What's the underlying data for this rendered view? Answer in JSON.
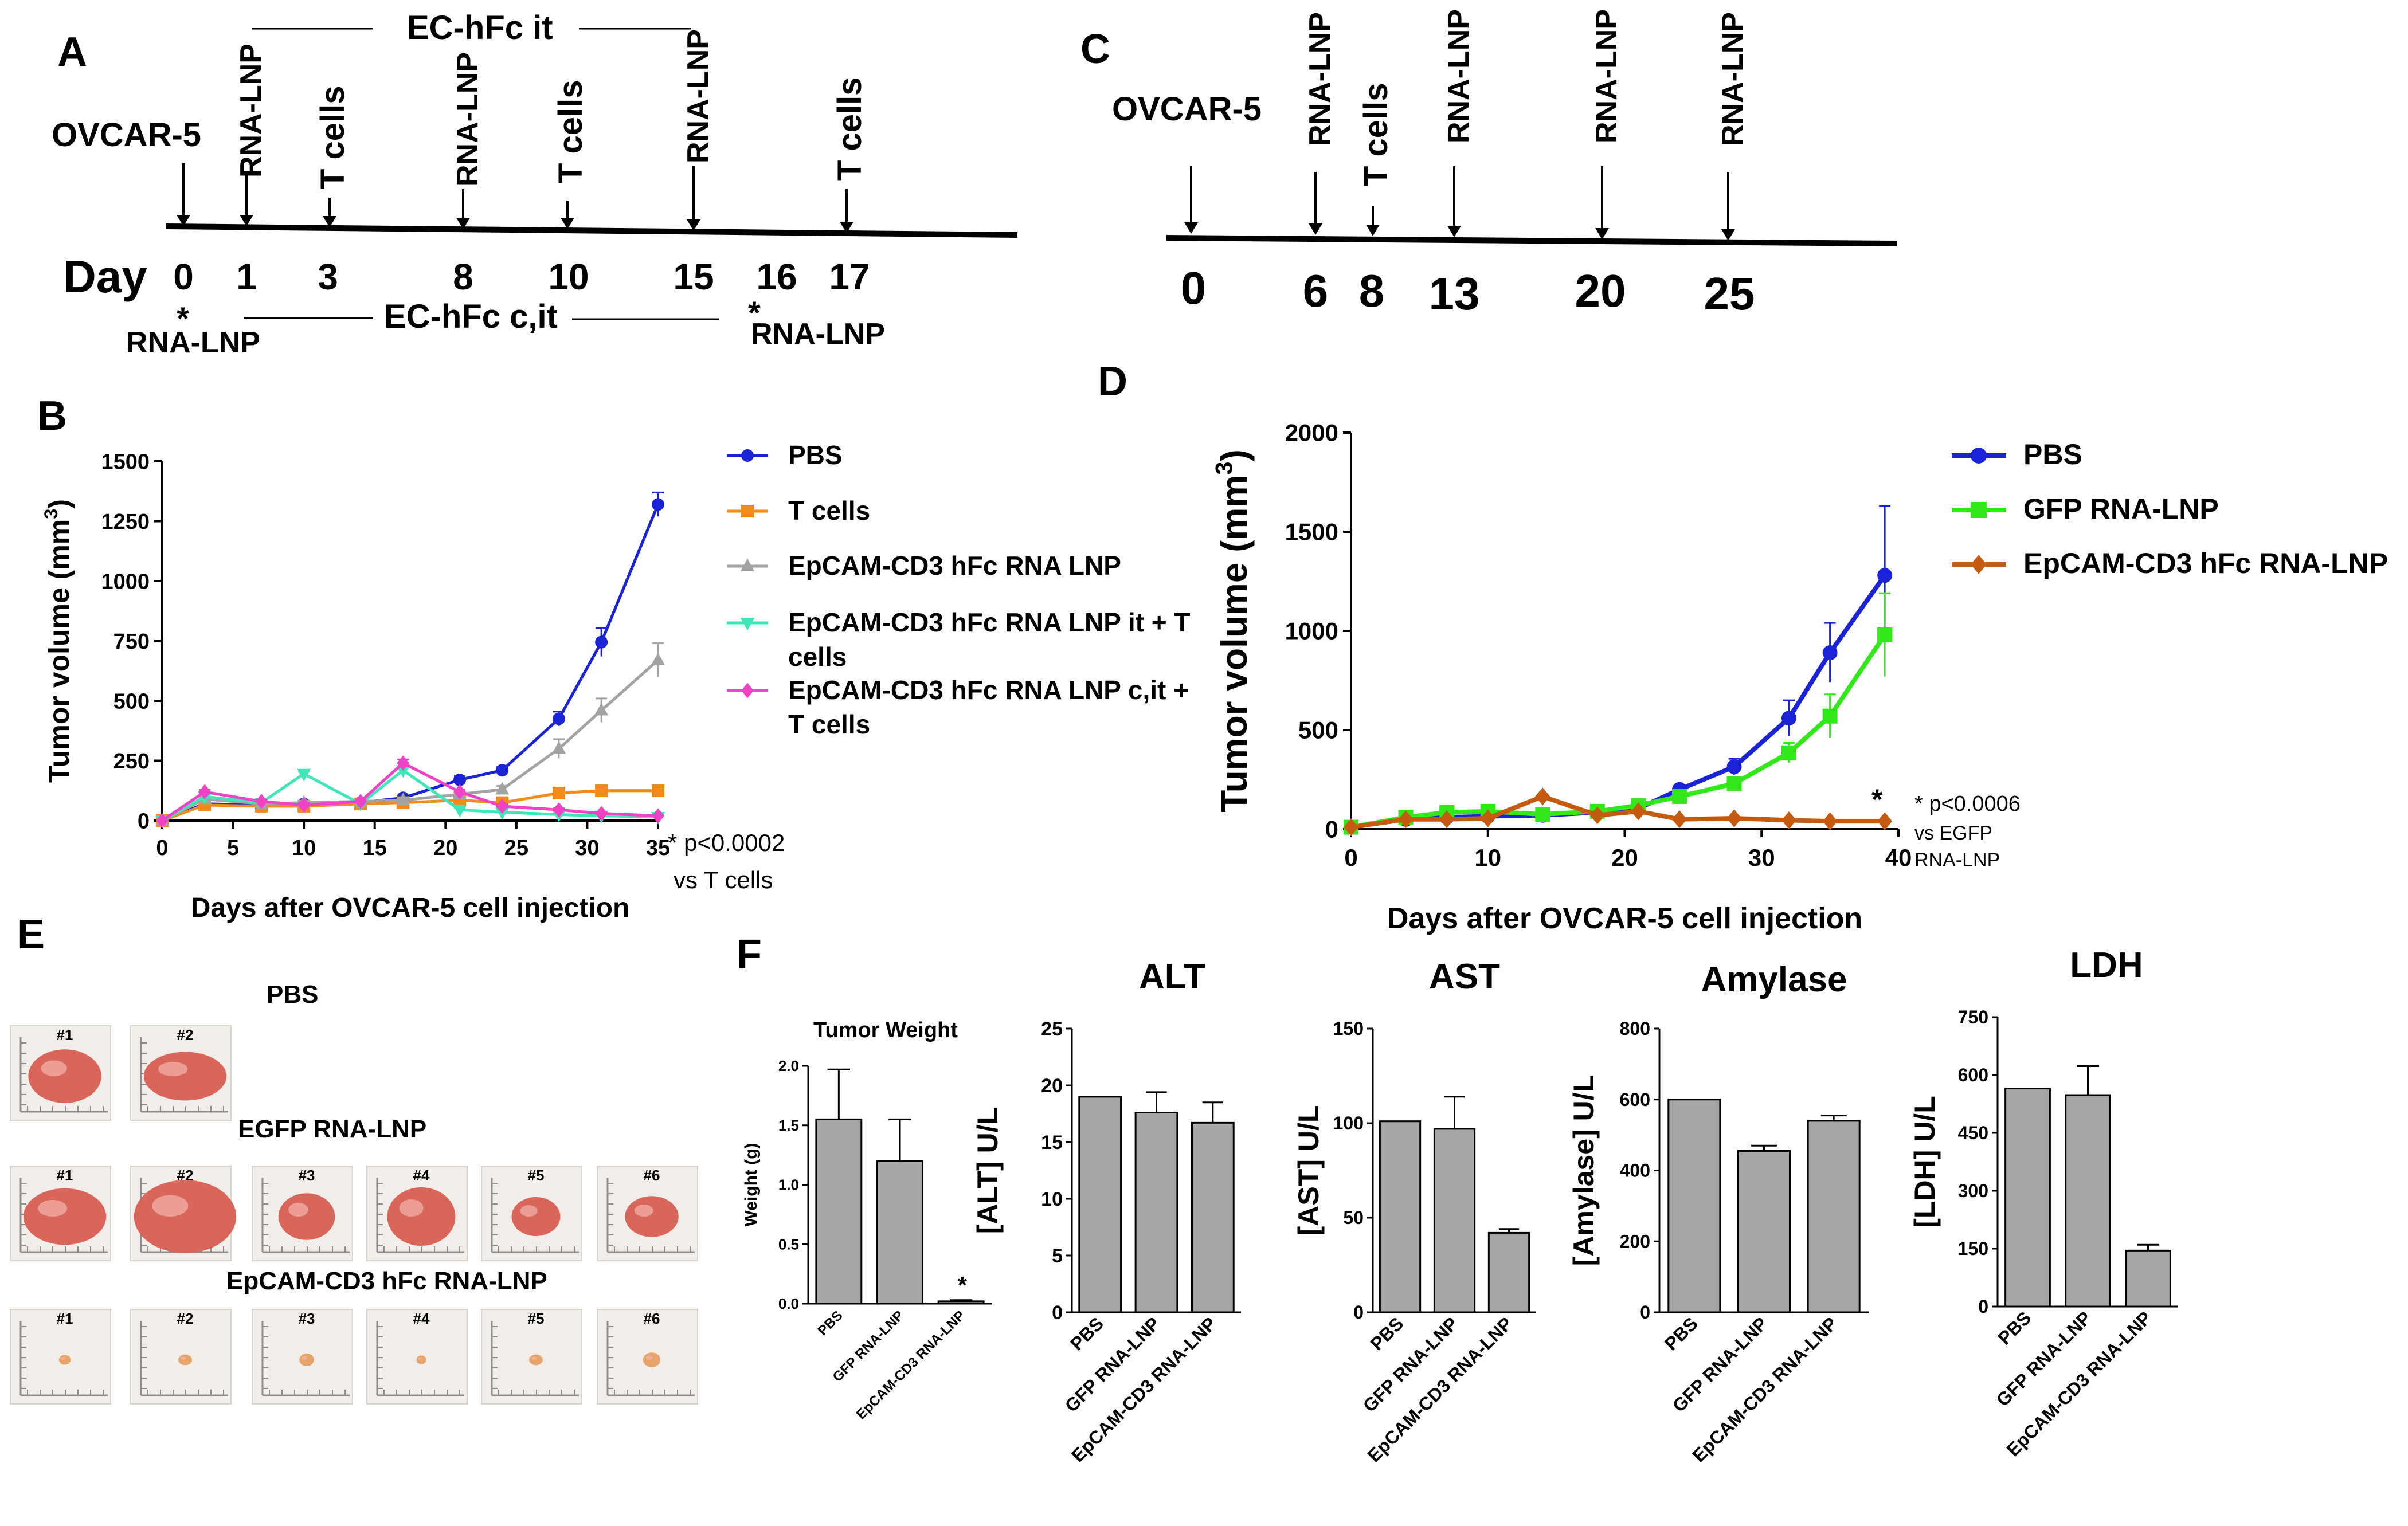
{
  "panels": {
    "A": {
      "letter": "A",
      "cell_line": "OVCAR-5",
      "day_label": "Day",
      "bracket_top": "EC-hFc it",
      "bracket_bottom": "EC-hFc c,it",
      "star": "*",
      "days": [
        "0",
        "1",
        "3",
        "8",
        "10",
        "15",
        "16",
        "17"
      ],
      "events": [
        "RNA-LNP",
        "T cells",
        "RNA-LNP",
        "T cells",
        "RNA-LNP",
        "T cells"
      ],
      "below_events": [
        "RNA-LNP",
        "RNA-LNP"
      ]
    },
    "C": {
      "letter": "C",
      "cell_line": "OVCAR-5",
      "days": [
        "0",
        "6",
        "8",
        "13",
        "20",
        "25"
      ],
      "events": [
        "RNA-LNP",
        "T cells",
        "RNA-LNP",
        "RNA-LNP",
        "RNA-LNP"
      ]
    },
    "B": {
      "letter": "B"
    },
    "D": {
      "letter": "D"
    },
    "E": {
      "letter": "E",
      "groups": [
        {
          "label": "PBS",
          "numbers": [
            "#1",
            "#2"
          ]
        },
        {
          "label": "EGFP RNA-LNP",
          "numbers": [
            "#1",
            "#2",
            "#3",
            "#4",
            "#5",
            "#6"
          ]
        },
        {
          "label": "EpCAM-CD3 hFc RNA-LNP",
          "numbers": [
            "#1",
            "#2",
            "#3",
            "#4",
            "#5",
            "#6"
          ]
        }
      ]
    },
    "F": {
      "letter": "F"
    }
  },
  "chart_data": [
    {
      "id": "B",
      "type": "line",
      "title": "",
      "xlabel": "Days after OVCAR-5 cell injection",
      "ylabel": "Tumor volume (mm",
      "ylabel_sup": "3",
      "ylabel_close": ")",
      "xlim": [
        0,
        35
      ],
      "ylim": [
        0,
        1500
      ],
      "xticks": [
        0,
        5,
        10,
        15,
        20,
        25,
        30,
        35
      ],
      "yticks": [
        0,
        250,
        500,
        750,
        1000,
        1250,
        1500
      ],
      "series": [
        {
          "name": "PBS",
          "color": "#1b23d6",
          "marker": "circle",
          "x": [
            0,
            3,
            7,
            10,
            14,
            17,
            21,
            24,
            28,
            31,
            35
          ],
          "values": [
            0,
            70,
            65,
            70,
            75,
            95,
            170,
            210,
            425,
            745,
            1320
          ],
          "err": [
            0,
            10,
            8,
            8,
            10,
            10,
            15,
            15,
            30,
            60,
            50
          ]
        },
        {
          "name": "T cells",
          "color": "#f28b1a",
          "marker": "square",
          "x": [
            0,
            3,
            7,
            10,
            14,
            17,
            21,
            24,
            28,
            31,
            35
          ],
          "values": [
            0,
            65,
            60,
            60,
            70,
            75,
            85,
            75,
            115,
            125,
            125
          ],
          "err": [
            0,
            8,
            8,
            8,
            8,
            8,
            8,
            8,
            10,
            10,
            10
          ]
        },
        {
          "name": "EpCAM-CD3 hFc RNA LNP",
          "color": "#a3a3a3",
          "marker": "triangle",
          "x": [
            0,
            3,
            7,
            10,
            14,
            17,
            21,
            24,
            28,
            31,
            35
          ],
          "values": [
            0,
            90,
            70,
            75,
            80,
            85,
            110,
            130,
            300,
            460,
            670
          ],
          "err": [
            0,
            10,
            8,
            8,
            10,
            10,
            15,
            15,
            40,
            50,
            70
          ]
        },
        {
          "name": "EpCAM-CD3 hFc RNA LNP it + T cells",
          "color": "#3ee6b8",
          "marker": "triangle-down",
          "x": [
            0,
            3,
            7,
            10,
            14,
            17,
            21,
            24,
            28,
            31,
            35
          ],
          "values": [
            0,
            100,
            75,
            195,
            70,
            210,
            45,
            35,
            25,
            20,
            15
          ],
          "err": [
            0,
            10,
            8,
            10,
            8,
            10,
            8,
            8,
            6,
            5,
            5
          ]
        },
        {
          "name": "EpCAM-CD3 hFc  RNA LNP c,it + T cells",
          "color": "#ef42c5",
          "marker": "diamond",
          "x": [
            0,
            3,
            7,
            10,
            14,
            17,
            21,
            24,
            28,
            31,
            35
          ],
          "values": [
            0,
            120,
            80,
            65,
            80,
            240,
            120,
            60,
            45,
            30,
            20
          ],
          "err": [
            0,
            10,
            8,
            8,
            8,
            15,
            10,
            8,
            6,
            5,
            5
          ]
        }
      ],
      "legend": [
        "PBS",
        "T cells",
        "EpCAM-CD3 hFc RNA LNP",
        "EpCAM-CD3 hFc RNA LNP it + T",
        "cells",
        "EpCAM-CD3 hFc  RNA LNP c,it +",
        "T cells"
      ],
      "annotation": [
        "* p<0.0002",
        "vs T cells"
      ]
    },
    {
      "id": "D",
      "type": "line",
      "xlabel": "Days after OVCAR-5 cell injection",
      "ylabel": "Tumor volume (mm",
      "ylabel_sup": "3",
      "ylabel_close": ")",
      "xlim": [
        0,
        40
      ],
      "ylim": [
        0,
        2000
      ],
      "xticks": [
        0,
        10,
        20,
        30,
        40
      ],
      "yticks": [
        0,
        500,
        1000,
        1500,
        2000
      ],
      "series": [
        {
          "name": "PBS",
          "color": "#1b23d6",
          "marker": "circle",
          "x": [
            0,
            4,
            7,
            10,
            14,
            18,
            21,
            24,
            28,
            32,
            35,
            39
          ],
          "values": [
            10,
            50,
            60,
            65,
            70,
            85,
            105,
            200,
            315,
            560,
            890,
            1280
          ],
          "err": [
            0,
            10,
            10,
            10,
            10,
            10,
            15,
            20,
            40,
            90,
            150,
            350
          ]
        },
        {
          "name": "GFP RNA-LNP",
          "color": "#33e81a",
          "marker": "square",
          "x": [
            0,
            4,
            7,
            10,
            14,
            18,
            21,
            24,
            28,
            32,
            35,
            39
          ],
          "values": [
            10,
            60,
            85,
            90,
            75,
            90,
            120,
            165,
            230,
            385,
            570,
            980
          ],
          "err": [
            0,
            10,
            10,
            10,
            10,
            10,
            15,
            20,
            30,
            50,
            110,
            210
          ]
        },
        {
          "name": "EpCAM-CD3 hFc RNA-LNP",
          "color": "#c55b11",
          "marker": "diamond",
          "x": [
            0,
            4,
            7,
            10,
            14,
            18,
            21,
            24,
            28,
            32,
            35,
            39
          ],
          "values": [
            10,
            50,
            50,
            55,
            165,
            70,
            90,
            50,
            55,
            45,
            40,
            40
          ],
          "err": [
            0,
            5,
            5,
            5,
            10,
            5,
            5,
            5,
            5,
            5,
            5,
            5
          ]
        }
      ],
      "legend": [
        "PBS",
        "GFP RNA-LNP",
        "EpCAM-CD3 hFc RNA-LNP"
      ],
      "star": "*",
      "annotation": [
        "* p<0.0006",
        "vs EGFP",
        "RNA-LNP"
      ]
    },
    {
      "id": "F-tumor-weight",
      "type": "bar",
      "title": "Tumor Weight",
      "ylabel": "Weight (g)",
      "categories": [
        "PBS",
        "GFP RNA-LNP",
        "EpCAM-CD3 RNA-LNP"
      ],
      "values": [
        1.55,
        1.2,
        0.02
      ],
      "err": [
        0.42,
        0.35,
        0.01
      ],
      "ylim": [
        0,
        2.0
      ],
      "yticks": [
        "0.0",
        "0.5",
        "1.0",
        "1.5",
        "2.0"
      ],
      "star": "*"
    },
    {
      "id": "F-alt",
      "type": "bar",
      "title": "ALT",
      "ylabel": "[ALT] U/L",
      "categories": [
        "PBS",
        "GFP RNA-LNP",
        "EpCAM-CD3 RNA-LNP"
      ],
      "values": [
        19,
        17.6,
        16.7
      ],
      "err": [
        0,
        1.8,
        1.8
      ],
      "ylim": [
        0,
        25
      ],
      "yticks": [
        "0",
        "5",
        "10",
        "15",
        "20",
        "25"
      ]
    },
    {
      "id": "F-ast",
      "type": "bar",
      "title": "AST",
      "ylabel": "[AST] U/L",
      "categories": [
        "PBS",
        "GFP RNA-LNP",
        "EpCAM-CD3 RNA-LNP"
      ],
      "values": [
        101,
        97,
        42
      ],
      "err": [
        0,
        17,
        2
      ],
      "ylim": [
        0,
        150
      ],
      "yticks": [
        "0",
        "50",
        "100",
        "150"
      ]
    },
    {
      "id": "F-amylase",
      "type": "bar",
      "title": "Amylase",
      "ylabel": "[Amylase] U/L",
      "categories": [
        "PBS",
        "GFP RNA-LNP",
        "EpCAM-CD3 RNA-LNP"
      ],
      "values": [
        600,
        455,
        540
      ],
      "err": [
        0,
        15,
        15
      ],
      "ylim": [
        0,
        800
      ],
      "yticks": [
        "0",
        "200",
        "400",
        "600",
        "800"
      ]
    },
    {
      "id": "F-ldh",
      "type": "bar",
      "title": "LDH",
      "ylabel": "[LDH] U/L",
      "categories": [
        "PBS",
        "GFP RNA-LNP",
        "EpCAM-CD3 RNA-LNP"
      ],
      "values": [
        565,
        548,
        145
      ],
      "err": [
        0,
        75,
        15
      ],
      "ylim": [
        0,
        750
      ],
      "yticks": [
        "0",
        "150",
        "300",
        "450",
        "600",
        "750"
      ]
    }
  ]
}
